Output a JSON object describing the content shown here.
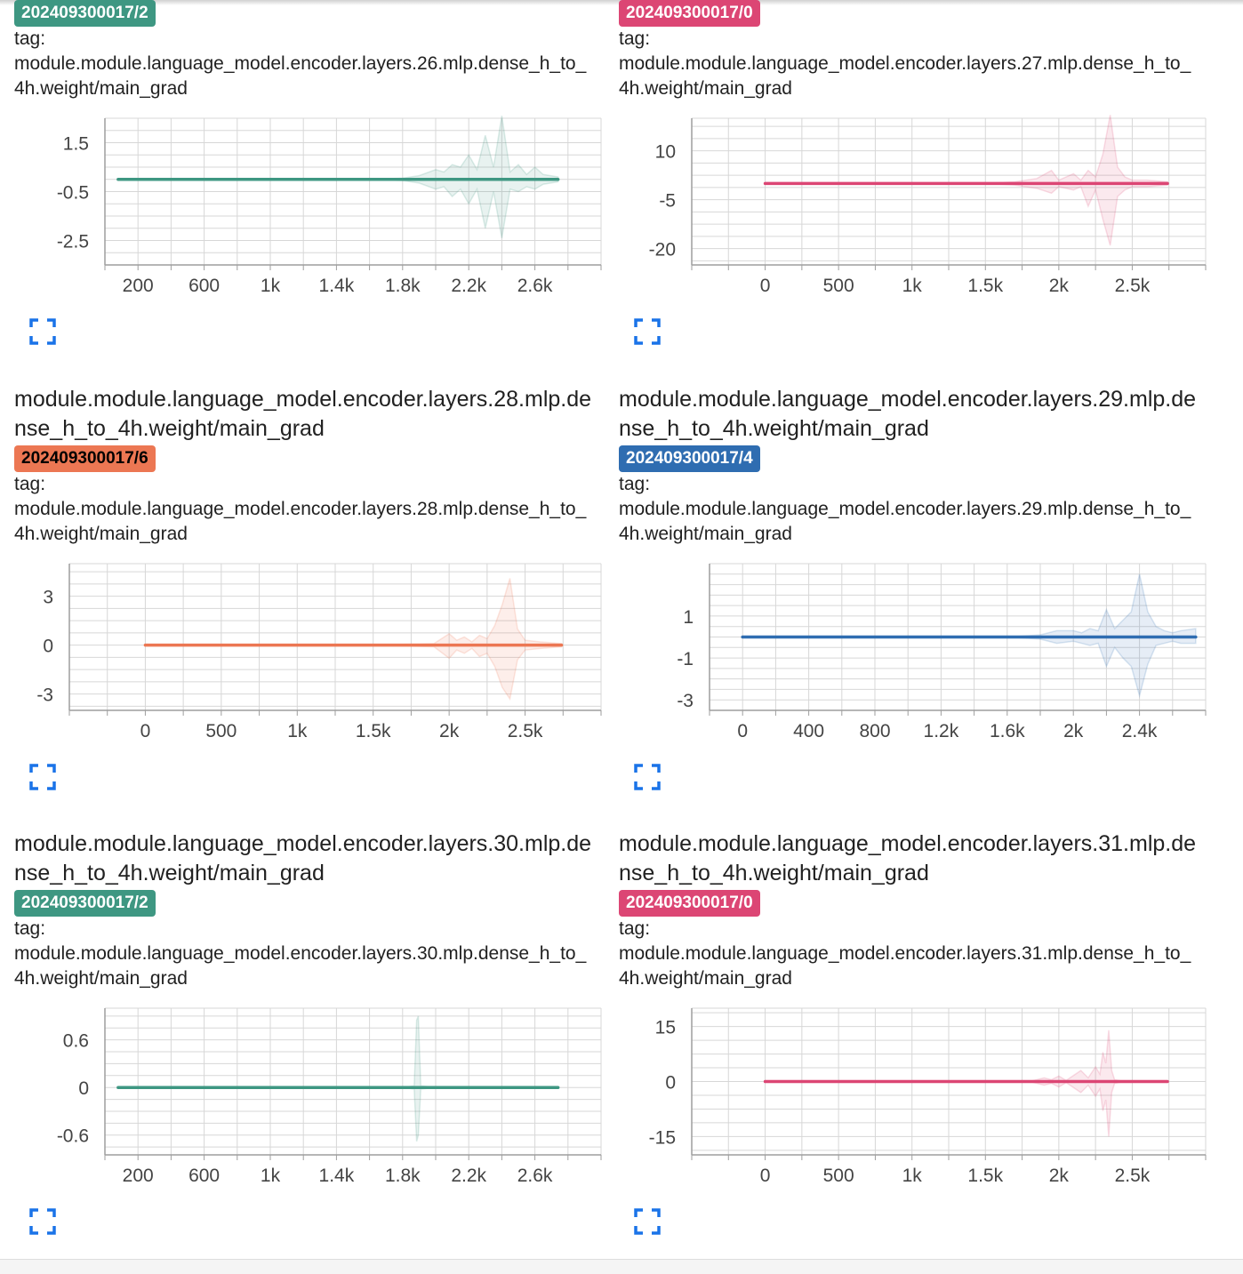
{
  "colors": {
    "teal": "#3e9782",
    "pink": "#dc4674",
    "orange": "#ec7753",
    "blue": "#2f6db1",
    "grid": "#d7d7d7",
    "axis": "#9e9e9e",
    "tick_text": "#444444"
  },
  "icons": {
    "fullscreen": "fullscreen-icon"
  },
  "tag_label": "tag:",
  "cards": [
    {
      "title": "",
      "run": "202409300017/2",
      "run_color": "#3e9782",
      "run_text_color": "#ffffff",
      "tag": "module.module.language_model.encoder.layers.26.mlp.dense_h_to_4h.weight/main_grad",
      "chart_data": {
        "type": "line",
        "xlim": [
          0,
          3000
        ],
        "ylim": [
          -3.5,
          2.5
        ],
        "xticks": [
          200,
          600,
          1000,
          1400,
          1800,
          2200,
          2600
        ],
        "xtick_labels": [
          "200",
          "600",
          "1k",
          "1.4k",
          "1.8k",
          "2.2k",
          "2.6k"
        ],
        "yticks": [
          1.5,
          -0.5,
          -2.5
        ],
        "ytick_labels": [
          "1.5",
          "-0.5",
          "-2.5"
        ],
        "series": [
          {
            "color": "#3e9782",
            "x": [
              80,
              400,
              800,
              1200,
              1600,
              1800,
              1900,
              2000,
              2050,
              2100,
              2150,
              2200,
              2250,
              2300,
              2350,
              2400,
              2450,
              2500,
              2550,
              2600,
              2650,
              2740
            ],
            "y": [
              0,
              0,
              0,
              0,
              0,
              0,
              0,
              0,
              0,
              0,
              0,
              0,
              0,
              0,
              0,
              0,
              0,
              0,
              0,
              0,
              0,
              0
            ],
            "band_upper": [
              0,
              0,
              0,
              0,
              0,
              0.05,
              0.15,
              0.4,
              0.3,
              0.6,
              0.5,
              1.0,
              0.4,
              1.8,
              0.5,
              2.6,
              0.3,
              0.6,
              0.2,
              0.5,
              0.2,
              0.1
            ],
            "band_lower": [
              0,
              0,
              0,
              0,
              0,
              -0.05,
              -0.15,
              -0.4,
              -0.3,
              -0.7,
              -0.4,
              -1.0,
              -0.4,
              -2.0,
              -0.5,
              -2.4,
              -0.4,
              -0.5,
              -0.3,
              -0.4,
              -0.2,
              -0.1
            ]
          }
        ]
      }
    },
    {
      "title": "",
      "run": "202409300017/0",
      "run_color": "#dc4674",
      "run_text_color": "#ffffff",
      "tag": "module.module.language_model.encoder.layers.27.mlp.dense_h_to_4h.weight/main_grad",
      "chart_data": {
        "type": "line",
        "xlim": [
          -500,
          3000
        ],
        "ylim": [
          -25,
          20
        ],
        "xticks": [
          0,
          500,
          1000,
          1500,
          2000,
          2500
        ],
        "xtick_labels": [
          "0",
          "500",
          "1k",
          "1.5k",
          "2k",
          "2.5k"
        ],
        "yticks": [
          10,
          -5,
          -20
        ],
        "ytick_labels": [
          "10",
          "-5",
          "-20"
        ],
        "series": [
          {
            "color": "#dc4674",
            "x": [
              0,
              500,
              1000,
              1500,
              1700,
              1850,
              1950,
              2000,
              2100,
              2150,
              2200,
              2250,
              2300,
              2350,
              2400,
              2450,
              2500,
              2600,
              2740
            ],
            "y": [
              0,
              0,
              0,
              0,
              0,
              0,
              0,
              0,
              0,
              0,
              0,
              0,
              0,
              0,
              0,
              0,
              0,
              0,
              0
            ],
            "band_upper": [
              0,
              0,
              0,
              0,
              0.5,
              1.5,
              4,
              1,
              3,
              1,
              4,
              2,
              9,
              21,
              5,
              2,
              1,
              1,
              0.5
            ],
            "band_lower": [
              0,
              0,
              0,
              0,
              -0.5,
              -1.5,
              -3,
              -1,
              -2,
              -1,
              -7,
              -2,
              -11,
              -19,
              -4,
              -2,
              -1,
              -1,
              -0.5
            ]
          }
        ]
      }
    },
    {
      "title": "module.module.language_model.encoder.layers.28.mlp.dense_h_to_4h.weight/main_grad",
      "run": "202409300017/6",
      "run_color": "#ec7753",
      "run_text_color": "#000000",
      "tag": "module.module.language_model.encoder.layers.28.mlp.dense_h_to_4h.weight/main_grad",
      "chart_data": {
        "type": "line",
        "xlim": [
          -500,
          3000
        ],
        "ylim": [
          -4,
          5
        ],
        "xticks": [
          0,
          500,
          1000,
          1500,
          2000,
          2500
        ],
        "xtick_labels": [
          "0",
          "500",
          "1k",
          "1.5k",
          "2k",
          "2.5k"
        ],
        "yticks": [
          3,
          0,
          -3
        ],
        "ytick_labels": [
          "3",
          "0",
          "-3"
        ],
        "series": [
          {
            "color": "#ec7753",
            "x": [
              0,
              500,
              1000,
              1500,
              1900,
              2000,
              2050,
              2100,
              2150,
              2200,
              2250,
              2300,
              2350,
              2400,
              2450,
              2500,
              2600,
              2740
            ],
            "y": [
              0,
              0,
              0,
              0,
              0,
              0,
              0,
              0,
              0,
              0,
              0,
              0,
              0,
              0,
              0,
              0,
              0,
              0
            ],
            "band_upper": [
              0,
              0,
              0,
              0,
              0.1,
              0.7,
              0.3,
              0.5,
              0.2,
              0.6,
              0.4,
              1.2,
              2.5,
              4.1,
              1.0,
              0.3,
              0.2,
              0.1
            ],
            "band_lower": [
              0,
              0,
              0,
              0,
              -0.1,
              -0.8,
              -0.3,
              -0.5,
              -0.2,
              -0.7,
              -0.5,
              -1.3,
              -2.6,
              -3.3,
              -0.9,
              -0.3,
              -0.2,
              -0.1
            ]
          }
        ]
      }
    },
    {
      "title": "module.module.language_model.encoder.layers.29.mlp.dense_h_to_4h.weight/main_grad",
      "run": "202409300017/4",
      "run_color": "#2f6db1",
      "run_text_color": "#ffffff",
      "tag": "module.module.language_model.encoder.layers.29.mlp.dense_h_to_4h.weight/main_grad",
      "chart_data": {
        "type": "line",
        "xlim": [
          -200,
          2800
        ],
        "ylim": [
          -3.5,
          3.5
        ],
        "xticks": [
          0,
          400,
          800,
          1200,
          1600,
          2000,
          2400
        ],
        "xtick_labels": [
          "0",
          "400",
          "800",
          "1.2k",
          "1.6k",
          "2k",
          "2.4k"
        ],
        "yticks": [
          1,
          -1,
          -3
        ],
        "ytick_labels": [
          "1",
          "-1",
          "-3"
        ],
        "series": [
          {
            "color": "#2f6db1",
            "x": [
              0,
              400,
              800,
              1200,
              1600,
              1800,
              1900,
              2000,
              2050,
              2100,
              2150,
              2200,
              2250,
              2300,
              2350,
              2400,
              2450,
              2500,
              2550,
              2600,
              2650,
              2740
            ],
            "y": [
              0,
              0,
              0,
              0,
              0,
              0,
              0,
              0,
              0,
              0,
              0,
              0,
              0,
              0,
              0,
              0,
              0,
              0,
              0,
              0,
              0,
              0
            ],
            "band_upper": [
              0,
              0,
              0,
              0,
              0,
              0.1,
              0.3,
              0.3,
              0.2,
              0.4,
              0.3,
              1.3,
              0.4,
              0.8,
              1.2,
              3.0,
              1.2,
              0.5,
              0.3,
              0.2,
              0.3,
              0.4
            ],
            "band_lower": [
              0,
              0,
              0,
              0,
              0,
              -0.1,
              -0.3,
              -0.2,
              -0.3,
              -0.4,
              -0.3,
              -1.4,
              -0.5,
              -1.0,
              -1.4,
              -2.8,
              -1.3,
              -0.4,
              -0.3,
              -0.2,
              -0.3,
              -0.3
            ]
          }
        ]
      }
    },
    {
      "title": "module.module.language_model.encoder.layers.30.mlp.dense_h_to_4h.weight/main_grad",
      "run": "202409300017/2",
      "run_color": "#3e9782",
      "run_text_color": "#ffffff",
      "tag": "module.module.language_model.encoder.layers.30.mlp.dense_h_to_4h.weight/main_grad",
      "chart_data": {
        "type": "line",
        "xlim": [
          0,
          3000
        ],
        "ylim": [
          -0.85,
          1.0
        ],
        "xticks": [
          200,
          600,
          1000,
          1400,
          1800,
          2200,
          2600
        ],
        "xtick_labels": [
          "200",
          "600",
          "1k",
          "1.4k",
          "1.8k",
          "2.2k",
          "2.6k"
        ],
        "yticks": [
          0.6,
          0,
          -0.6
        ],
        "ytick_labels": [
          "0.6",
          "0",
          "-0.6"
        ],
        "series": [
          {
            "color": "#3e9782",
            "x": [
              80,
              600,
              1200,
              1800,
              1870,
              1885,
              1895,
              1910,
              2000,
              2400,
              2740
            ],
            "y": [
              0,
              0,
              0,
              0,
              0,
              0,
              0,
              0,
              0,
              0,
              0
            ],
            "band_upper": [
              0,
              0,
              0,
              0,
              0.02,
              0.85,
              0.9,
              0.02,
              0,
              0,
              0
            ],
            "band_lower": [
              0,
              0,
              0,
              0,
              -0.02,
              -0.68,
              -0.6,
              -0.02,
              0,
              0,
              0
            ]
          }
        ]
      }
    },
    {
      "title": "module.module.language_model.encoder.layers.31.mlp.dense_h_to_4h.weight/main_grad",
      "run": "202409300017/0",
      "run_color": "#dc4674",
      "run_text_color": "#ffffff",
      "tag": "module.module.language_model.encoder.layers.31.mlp.dense_h_to_4h.weight/main_grad",
      "chart_data": {
        "type": "line",
        "xlim": [
          -500,
          3000
        ],
        "ylim": [
          -20,
          20
        ],
        "xticks": [
          0,
          500,
          1000,
          1500,
          2000,
          2500
        ],
        "xtick_labels": [
          "0",
          "500",
          "1k",
          "1.5k",
          "2k",
          "2.5k"
        ],
        "yticks": [
          15,
          0,
          -15
        ],
        "ytick_labels": [
          "15",
          "0",
          "-15"
        ],
        "series": [
          {
            "color": "#dc4674",
            "x": [
              0,
              500,
              1000,
              1500,
              1800,
              1900,
              1950,
              2000,
              2050,
              2150,
              2200,
              2250,
              2280,
              2300,
              2320,
              2340,
              2360,
              2380,
              2450,
              2740
            ],
            "y": [
              0,
              0,
              0,
              0,
              0,
              0,
              0,
              0,
              0,
              0,
              0,
              0,
              0,
              0,
              0,
              0,
              0,
              0,
              0,
              0
            ],
            "band_upper": [
              0,
              0,
              0,
              0,
              0,
              1,
              0.5,
              1.5,
              0.3,
              3,
              1,
              4,
              2,
              8,
              5,
              14,
              3,
              0.5,
              0,
              0
            ],
            "band_lower": [
              0,
              0,
              0,
              0,
              0,
              -1,
              -0.5,
              -1.5,
              -0.3,
              -3,
              -1,
              -4,
              -2,
              -8,
              -5,
              -15,
              -3,
              -0.5,
              0,
              0
            ]
          }
        ]
      }
    }
  ]
}
